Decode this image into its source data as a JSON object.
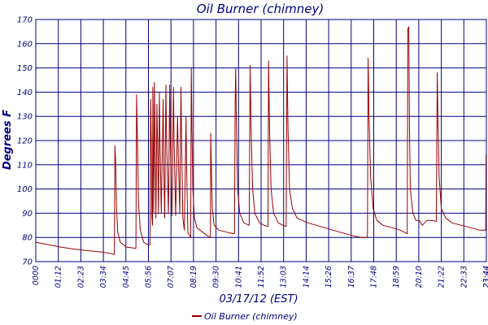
{
  "chart_data": {
    "type": "line",
    "title": "Oil Burner (chimney)",
    "xlabel": "03/17/12 (EST)",
    "ylabel": "Degrees F",
    "ylim": [
      70,
      170
    ],
    "yticks": [
      70,
      80,
      90,
      100,
      110,
      120,
      130,
      140,
      150,
      160,
      170
    ],
    "xlim": [
      "00:00",
      "24:00"
    ],
    "xtick_labels": [
      "0000",
      "01:12",
      "02:23",
      "03:34",
      "04:45",
      "05:56",
      "07:07",
      "08:19",
      "09:30",
      "10:41",
      "11:52",
      "13:03",
      "14:14",
      "15:26",
      "16:37",
      "17:48",
      "18:59",
      "20:10",
      "21:22",
      "22:33",
      "23:44",
      "23:44"
    ],
    "grid": true,
    "legend_position": "bottom",
    "colors": {
      "series": "#990000",
      "grid": "#000080",
      "text": "#000080"
    },
    "series": [
      {
        "name": "Oil Burner (chimney)",
        "points": [
          [
            "00:00",
            78
          ],
          [
            "00:40",
            77
          ],
          [
            "01:20",
            76
          ],
          [
            "02:00",
            75.2
          ],
          [
            "02:40",
            74.6
          ],
          [
            "03:20",
            74.1
          ],
          [
            "03:55",
            73.5
          ],
          [
            "04:11",
            73
          ],
          [
            "04:13",
            118
          ],
          [
            "04:15",
            112
          ],
          [
            "04:18",
            92
          ],
          [
            "04:22",
            82
          ],
          [
            "04:30",
            78
          ],
          [
            "04:50",
            76
          ],
          [
            "05:20",
            75.5
          ],
          [
            "05:22",
            139
          ],
          [
            "05:25",
            120
          ],
          [
            "05:28",
            95
          ],
          [
            "05:34",
            83
          ],
          [
            "05:45",
            78
          ],
          [
            "05:58",
            77
          ],
          [
            "06:05",
            77
          ],
          [
            "06:07",
            137
          ],
          [
            "06:09",
            120
          ],
          [
            "06:11",
            88
          ],
          [
            "06:13",
            85
          ],
          [
            "06:14",
            142
          ],
          [
            "06:15",
            120
          ],
          [
            "06:17",
            90
          ],
          [
            "06:19",
            144
          ],
          [
            "06:21",
            120
          ],
          [
            "06:24",
            88
          ],
          [
            "06:27",
            135
          ],
          [
            "06:29",
            120
          ],
          [
            "06:32",
            90
          ],
          [
            "06:35",
            140
          ],
          [
            "06:37",
            120
          ],
          [
            "06:41",
            90
          ],
          [
            "06:47",
            137
          ],
          [
            "06:49",
            110
          ],
          [
            "06:52",
            88
          ],
          [
            "06:56",
            143
          ],
          [
            "06:58",
            120
          ],
          [
            "07:04",
            90
          ],
          [
            "07:08",
            143
          ],
          [
            "07:10",
            120
          ],
          [
            "07:15",
            89
          ],
          [
            "07:20",
            142
          ],
          [
            "07:22",
            120
          ],
          [
            "07:27",
            89
          ],
          [
            "07:33",
            130
          ],
          [
            "07:35",
            118
          ],
          [
            "07:40",
            90
          ],
          [
            "07:44",
            142
          ],
          [
            "07:46",
            120
          ],
          [
            "07:50",
            88
          ],
          [
            "07:55",
            83
          ],
          [
            "08:00",
            130
          ],
          [
            "08:02",
            110
          ],
          [
            "08:06",
            82
          ],
          [
            "08:15",
            80
          ],
          [
            "08:17",
            150
          ],
          [
            "08:19",
            125
          ],
          [
            "08:22",
            100
          ],
          [
            "08:27",
            88
          ],
          [
            "08:35",
            84
          ],
          [
            "08:55",
            82
          ],
          [
            "09:10",
            80.5
          ],
          [
            "09:18",
            80
          ],
          [
            "09:19",
            123
          ],
          [
            "09:21",
            110
          ],
          [
            "09:24",
            92
          ],
          [
            "09:30",
            85
          ],
          [
            "09:45",
            83
          ],
          [
            "10:15",
            82
          ],
          [
            "10:35",
            81.5
          ],
          [
            "10:37",
            135
          ],
          [
            "10:39",
            150
          ],
          [
            "10:41",
            128
          ],
          [
            "10:45",
            100
          ],
          [
            "10:52",
            90
          ],
          [
            "11:05",
            86
          ],
          [
            "11:22",
            85
          ],
          [
            "11:25",
            151
          ],
          [
            "11:28",
            125
          ],
          [
            "11:33",
            100
          ],
          [
            "11:40",
            90
          ],
          [
            "11:55",
            86
          ],
          [
            "12:10",
            85
          ],
          [
            "12:22",
            84.5
          ],
          [
            "12:24",
            153
          ],
          [
            "12:27",
            125
          ],
          [
            "12:32",
            100
          ],
          [
            "12:40",
            90
          ],
          [
            "12:55",
            86
          ],
          [
            "13:10",
            85
          ],
          [
            "13:20",
            84.5
          ],
          [
            "13:23",
            155
          ],
          [
            "13:26",
            125
          ],
          [
            "13:31",
            100
          ],
          [
            "13:40",
            92
          ],
          [
            "13:55",
            88
          ],
          [
            "14:30",
            86
          ],
          [
            "15:10",
            84.5
          ],
          [
            "15:50",
            83
          ],
          [
            "16:30",
            81.5
          ],
          [
            "17:00",
            80.5
          ],
          [
            "17:20",
            80
          ],
          [
            "17:40",
            80
          ],
          [
            "17:42",
            154
          ],
          [
            "17:45",
            130
          ],
          [
            "17:50",
            105
          ],
          [
            "17:58",
            92
          ],
          [
            "18:10",
            87
          ],
          [
            "18:30",
            85
          ],
          [
            "19:00",
            84
          ],
          [
            "19:25",
            83
          ],
          [
            "19:40",
            82
          ],
          [
            "19:47",
            81.5
          ],
          [
            "19:49",
            166
          ],
          [
            "19:52",
            167
          ],
          [
            "19:54",
            126
          ],
          [
            "19:57",
            100
          ],
          [
            "20:05",
            90
          ],
          [
            "20:15",
            87
          ],
          [
            "20:25",
            87
          ],
          [
            "20:35",
            85
          ],
          [
            "20:50",
            87
          ],
          [
            "21:10",
            87
          ],
          [
            "21:20",
            86.5
          ],
          [
            "21:23",
            148
          ],
          [
            "21:25",
            130
          ],
          [
            "21:29",
            105
          ],
          [
            "21:36",
            92
          ],
          [
            "21:50",
            88
          ],
          [
            "22:10",
            86
          ],
          [
            "22:40",
            85
          ],
          [
            "23:10",
            84
          ],
          [
            "23:40",
            83
          ],
          [
            "23:58",
            83
          ],
          [
            "23:59",
            114
          ],
          [
            "24:00",
            114
          ]
        ]
      }
    ]
  }
}
